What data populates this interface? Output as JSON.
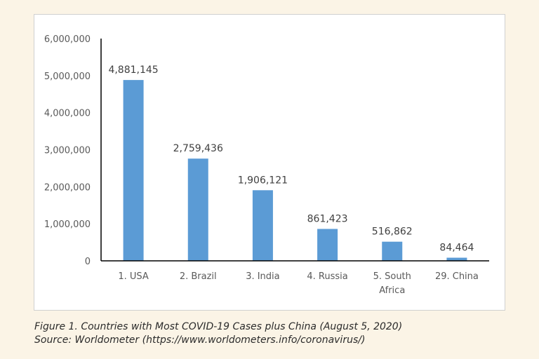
{
  "chart_data": {
    "type": "bar",
    "categories": [
      [
        "1. USA"
      ],
      [
        "2. Brazil"
      ],
      [
        "3. India"
      ],
      [
        "4. Russia"
      ],
      [
        "5. South",
        "Africa"
      ],
      [
        "29. China"
      ]
    ],
    "values": [
      4881145,
      2759436,
      1906121,
      861423,
      516862,
      84464
    ],
    "data_labels": [
      "4,881,145",
      "2,759,436",
      "1,906,121",
      "861,423",
      "516,862",
      "84,464"
    ],
    "y_ticks": [
      0,
      1000000,
      2000000,
      3000000,
      4000000,
      5000000,
      6000000
    ],
    "y_tick_labels": [
      "0",
      "1,000,000",
      "2,000,000",
      "3,000,000",
      "4,000,000",
      "5,000,000",
      "6,000,000"
    ],
    "ylim": [
      0,
      6000000
    ],
    "grid": false,
    "bar_color": "#5b9bd5",
    "title": "",
    "xlabel": "",
    "ylabel": ""
  },
  "caption": {
    "line1": "Figure 1. Countries with Most COVID-19 Cases plus China (August 5, 2020)",
    "line2": "Source: Worldometer (https://www.worldometers.info/coronavirus/)"
  }
}
